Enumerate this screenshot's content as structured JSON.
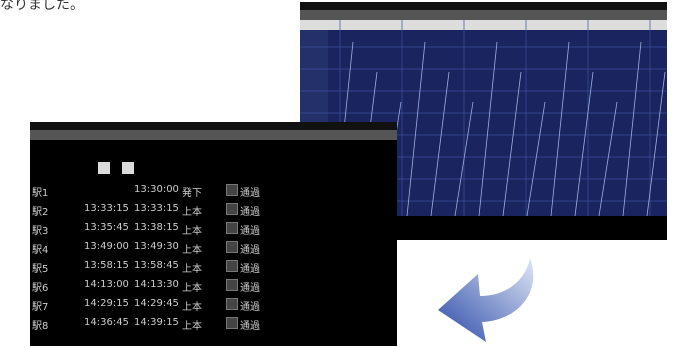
{
  "caption": "なりました。",
  "timetable": {
    "rows": [
      {
        "station": "駅1",
        "arrive": null,
        "depart": "13:30:00",
        "note": "発下",
        "check": "通過"
      },
      {
        "station": "駅2",
        "arrive": "13:33:15",
        "depart": "13:33:15",
        "note": "上本",
        "check": "通過"
      },
      {
        "station": "駅3",
        "arrive": "13:35:45",
        "depart": "13:38:15",
        "note": "上本",
        "check": "通過"
      },
      {
        "station": "駅4",
        "arrive": "13:49:00",
        "depart": "13:49:30",
        "note": "上本",
        "check": "通過"
      },
      {
        "station": "駅5",
        "arrive": "13:58:15",
        "depart": "13:58:45",
        "note": "上本",
        "check": "通過"
      },
      {
        "station": "駅6",
        "arrive": "14:13:00",
        "depart": "14:13:30",
        "note": "上本",
        "check": "通過"
      },
      {
        "station": "駅7",
        "arrive": "14:29:15",
        "depart": "14:29:45",
        "note": "上本",
        "check": "通過"
      },
      {
        "station": "駅8",
        "arrive": "14:36:45",
        "depart": "14:39:15",
        "note": "上本",
        "check": "通過"
      }
    ]
  }
}
